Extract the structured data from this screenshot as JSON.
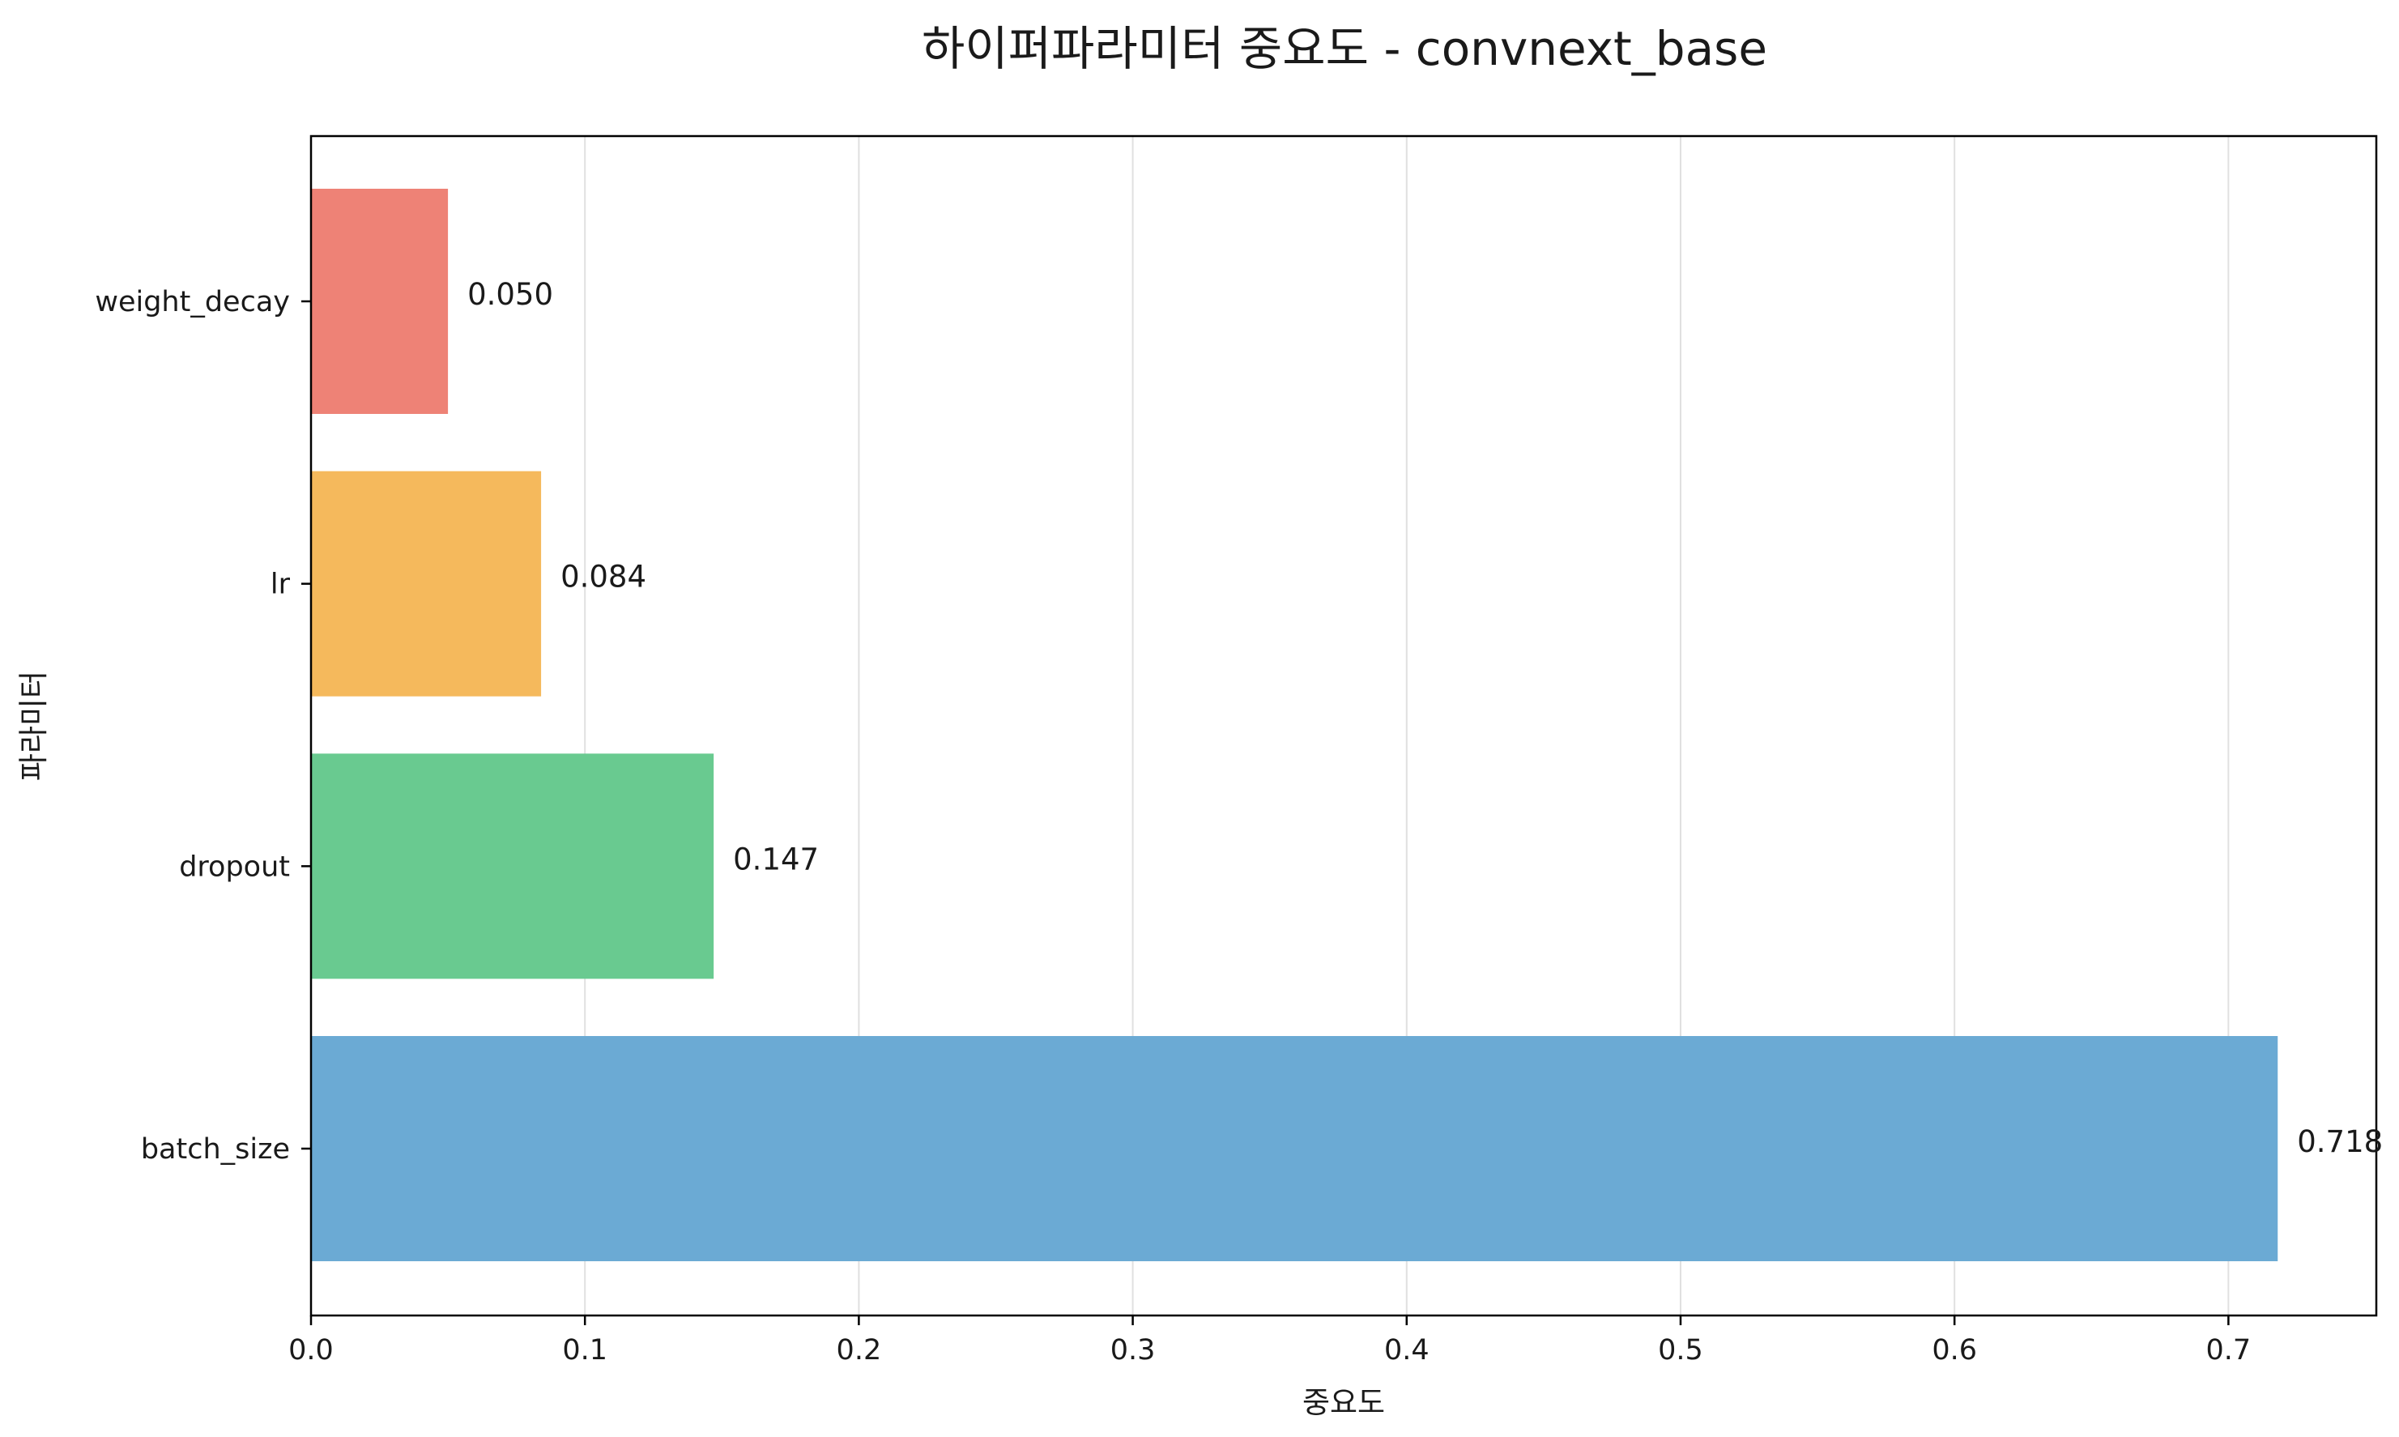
{
  "chart_data": {
    "type": "bar",
    "orientation": "horizontal",
    "title": "하이퍼파라미터 중요도 - convnext_base",
    "xlabel": "중요도",
    "ylabel": "파라미터",
    "categories": [
      "batch_size",
      "dropout",
      "lr",
      "weight_decay"
    ],
    "values": [
      0.718,
      0.147,
      0.084,
      0.05
    ],
    "value_labels": [
      "0.718",
      "0.147",
      "0.084",
      "0.050"
    ],
    "bar_colors": [
      "#6baad4",
      "#69ca90",
      "#f5b95c",
      "#ee8276"
    ],
    "xlim": [
      0,
      0.754
    ],
    "xticks": [
      0.0,
      0.1,
      0.2,
      0.3,
      0.4,
      0.5,
      0.6,
      0.7
    ],
    "xtick_labels": [
      "0.0",
      "0.1",
      "0.2",
      "0.3",
      "0.4",
      "0.5",
      "0.6",
      "0.7"
    ],
    "grid": "x-axis vertical lines",
    "grid_color": "#e0e0e0",
    "legend": "none"
  }
}
